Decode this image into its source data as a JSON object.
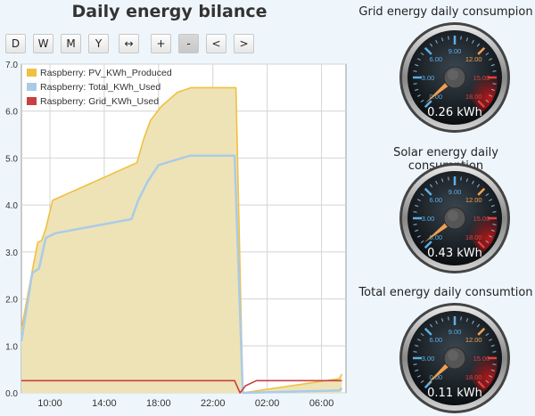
{
  "title": "Daily energy bilance",
  "toolbar": {
    "buttons": [
      {
        "label": "D",
        "pressed": false
      },
      {
        "label": "W",
        "pressed": false
      },
      {
        "label": "M",
        "pressed": false
      },
      {
        "label": "Y",
        "pressed": false
      },
      {
        "label": "↔",
        "pressed": false
      },
      {
        "label": "+",
        "pressed": false
      },
      {
        "label": "-",
        "pressed": true
      },
      {
        "label": "<",
        "pressed": false
      },
      {
        "label": ">",
        "pressed": false
      }
    ]
  },
  "chart_data": {
    "type": "area",
    "title": "Daily energy bilance",
    "xlabel": "",
    "ylabel": "",
    "ylim": [
      0,
      7
    ],
    "yticks": [
      "0.0",
      "1.0",
      "2.0",
      "3.0",
      "4.0",
      "5.0",
      "6.0",
      "7.0"
    ],
    "xticks": [
      {
        "label": "10:00",
        "h": 10
      },
      {
        "label": "14:00",
        "h": 14
      },
      {
        "label": "18:00",
        "h": 18
      },
      {
        "label": "22:00",
        "h": 22
      },
      {
        "label": "02:00",
        "h": 26
      },
      {
        "label": "06:00",
        "h": 30
      }
    ],
    "xlim": [
      7.9,
      31.8
    ],
    "grid": true,
    "legend_position": "top-left",
    "series": [
      {
        "name": "Raspberry: PV_KWh_Produced",
        "color": "#f0c040",
        "fill": "#eee3b6",
        "points": [
          [
            7.9,
            1.35
          ],
          [
            8.7,
            2.6
          ],
          [
            9.1,
            3.2
          ],
          [
            9.4,
            3.25
          ],
          [
            9.7,
            3.5
          ],
          [
            10.2,
            4.1
          ],
          [
            16.4,
            4.9
          ],
          [
            16.9,
            5.4
          ],
          [
            17.4,
            5.8
          ],
          [
            18.2,
            6.1
          ],
          [
            19.4,
            6.4
          ],
          [
            20.4,
            6.5
          ],
          [
            23.7,
            6.5
          ],
          [
            24.2,
            0.0
          ],
          [
            31.3,
            0.3
          ],
          [
            31.5,
            0.4
          ]
        ]
      },
      {
        "name": "Raspberry: Total_KWh_Used",
        "color": "#aacbe8",
        "fill": "none",
        "points": [
          [
            7.9,
            1.1
          ],
          [
            8.7,
            2.55
          ],
          [
            9.2,
            2.65
          ],
          [
            9.7,
            3.3
          ],
          [
            10.4,
            3.4
          ],
          [
            16.0,
            3.7
          ],
          [
            16.5,
            4.1
          ],
          [
            17.2,
            4.5
          ],
          [
            18.0,
            4.85
          ],
          [
            20.3,
            5.05
          ],
          [
            23.6,
            5.05
          ],
          [
            24.2,
            0.0
          ],
          [
            31.3,
            0.05
          ],
          [
            31.5,
            0.1
          ]
        ]
      },
      {
        "name": "Raspberry: Grid_KWh_Used",
        "color": "#c84040",
        "fill": "none",
        "points": [
          [
            7.9,
            0.26
          ],
          [
            23.6,
            0.26
          ],
          [
            24.0,
            0.0
          ],
          [
            24.4,
            0.15
          ],
          [
            25.2,
            0.26
          ],
          [
            31.5,
            0.26
          ]
        ]
      }
    ]
  },
  "gauges": [
    {
      "title": "Grid energy daily consumpion",
      "value": 0.26,
      "display": "0.26 kWh",
      "max": 18,
      "labels": [
        "0.00",
        "3.00",
        "6.00",
        "9.00",
        "12.00",
        "15.00",
        "18.00"
      ]
    },
    {
      "title": "Solar energy daily consumption",
      "value": 0.43,
      "display": "0.43 kWh",
      "max": 18,
      "labels": [
        "0.00",
        "3.00",
        "6.00",
        "9.00",
        "12.00",
        "15.00",
        "18.00"
      ]
    },
    {
      "title": "Total energy daily consumtion",
      "value": 0.11,
      "display": "0.11 kWh",
      "max": 18,
      "labels": [
        "0.00",
        "3.00",
        "6.00",
        "9.00",
        "12.00",
        "15.00",
        "18.00"
      ]
    }
  ],
  "colors": {
    "gauge_label_cold": "#5ab0e8",
    "gauge_label_warm": "#f0a050",
    "gauge_label_hot": "#e04040",
    "gauge_needle": "#f0a050"
  }
}
